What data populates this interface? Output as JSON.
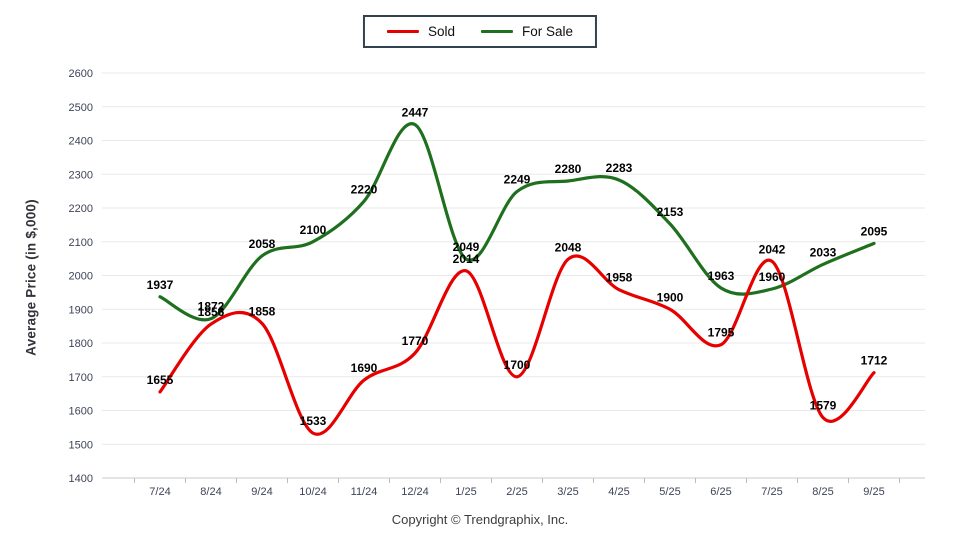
{
  "legend": {
    "items": [
      {
        "label": "Sold",
        "color": "#e60000"
      },
      {
        "label": "For Sale",
        "color": "#1e701e"
      }
    ]
  },
  "footer": {
    "copyright": "Copyright © Trendgraphix, Inc."
  },
  "chart_data": {
    "type": "line",
    "title": "",
    "xlabel": "",
    "ylabel": "Average Price (in $,000)",
    "categories": [
      "7/24",
      "8/24",
      "9/24",
      "10/24",
      "11/24",
      "12/24",
      "1/25",
      "2/25",
      "3/25",
      "4/25",
      "5/25",
      "6/25",
      "7/25",
      "8/25",
      "9/25"
    ],
    "series": [
      {
        "name": "Sold",
        "color": "#e60000",
        "values": [
          1655,
          1856,
          1858,
          1533,
          1690,
          1770,
          2014,
          1700,
          2048,
          1958,
          1900,
          1795,
          2042,
          1579,
          1712
        ]
      },
      {
        "name": "For Sale",
        "color": "#1e701e",
        "values": [
          1937,
          1872,
          2058,
          2100,
          2220,
          2447,
          2049,
          2249,
          2280,
          2283,
          2153,
          1963,
          1960,
          2033,
          2095
        ]
      }
    ],
    "ylim": [
      1400,
      2600
    ],
    "ytick_step": 100,
    "grid": true,
    "legend_position": "top-center",
    "data_labels": true
  }
}
